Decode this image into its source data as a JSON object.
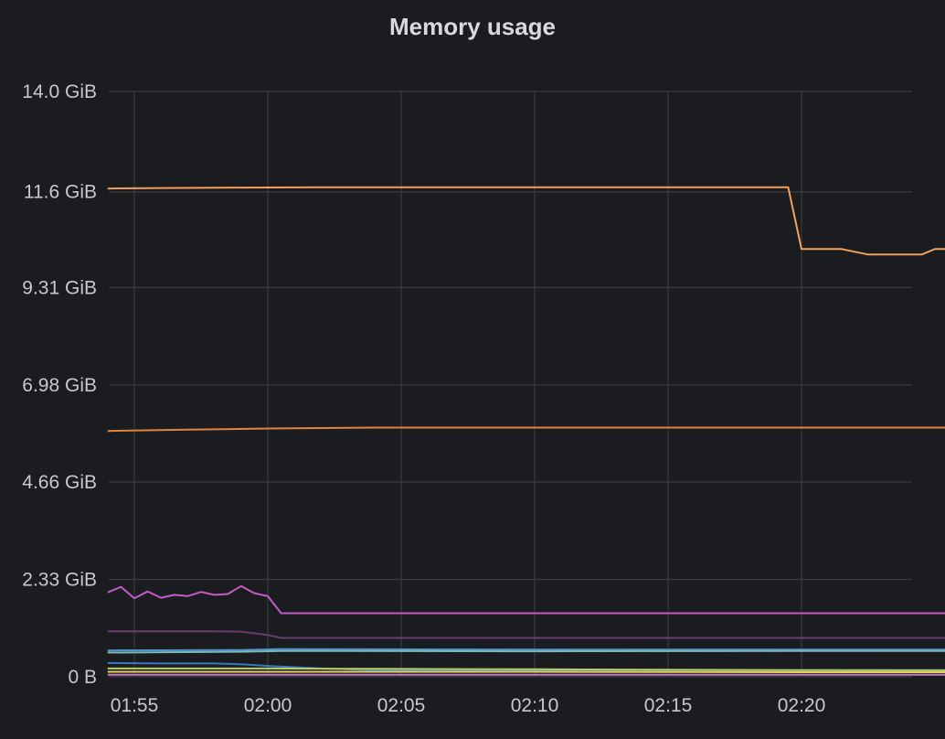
{
  "chart_data": {
    "type": "line",
    "title": "Memory usage",
    "xlabel": "",
    "ylabel": "",
    "x_ticks": [
      "01:55",
      "02:00",
      "02:05",
      "02:10",
      "02:15",
      "02:20"
    ],
    "y_ticks": [
      "0 B",
      "2.33 GiB",
      "4.66 GiB",
      "6.98 GiB",
      "9.31 GiB",
      "11.6 GiB",
      "14.0 GiB"
    ],
    "ylim": [
      0,
      14.0
    ],
    "xlim_minutes_after_0150": [
      4.0,
      34.0
    ],
    "grid": true,
    "legend": "none",
    "series": [
      {
        "color": "#f2a05b",
        "points": [
          [
            4,
            11.68
          ],
          [
            6,
            11.69
          ],
          [
            9,
            11.7
          ],
          [
            12,
            11.71
          ],
          [
            15,
            11.71
          ],
          [
            20,
            11.71
          ],
          [
            25,
            11.71
          ],
          [
            29.5,
            11.71
          ],
          [
            30,
            10.23
          ],
          [
            31,
            10.23
          ],
          [
            31.5,
            10.23
          ],
          [
            32.5,
            10.1
          ],
          [
            34,
            10.1
          ],
          [
            34.5,
            10.1
          ],
          [
            35,
            10.23
          ],
          [
            35.5,
            10.23
          ],
          [
            36,
            10.27
          ],
          [
            36.5,
            10.27
          ],
          [
            37,
            10.4
          ],
          [
            37.5,
            10.4
          ],
          [
            38,
            10.43
          ],
          [
            38.3,
            10.35
          ],
          [
            39,
            9.86
          ],
          [
            41,
            9.86
          ],
          [
            42,
            9.86
          ],
          [
            43,
            10.27
          ],
          [
            43.5,
            10.33
          ],
          [
            44.5,
            10.33
          ],
          [
            45,
            10.36
          ],
          [
            45.5,
            10.38
          ],
          [
            46,
            10.15
          ],
          [
            47,
            10.15
          ],
          [
            48,
            10.15
          ],
          [
            48.5,
            10.52
          ]
        ]
      },
      {
        "color": "#e2843b",
        "points": [
          [
            4,
            5.88
          ],
          [
            7,
            5.91
          ],
          [
            10,
            5.94
          ],
          [
            14,
            5.96
          ],
          [
            20,
            5.96
          ],
          [
            30,
            5.96
          ],
          [
            48.5,
            5.96
          ]
        ]
      },
      {
        "color": "#c45bc7",
        "points": [
          [
            4,
            2.02
          ],
          [
            4.5,
            2.15
          ],
          [
            5,
            1.88
          ],
          [
            5.5,
            2.04
          ],
          [
            6,
            1.89
          ],
          [
            6.5,
            1.96
          ],
          [
            7,
            1.93
          ],
          [
            7.5,
            2.03
          ],
          [
            8,
            1.96
          ],
          [
            8.5,
            1.98
          ],
          [
            9,
            2.17
          ],
          [
            9.5,
            2.0
          ],
          [
            10,
            1.93
          ],
          [
            10.5,
            1.52
          ],
          [
            12,
            1.52
          ],
          [
            20,
            1.52
          ],
          [
            30,
            1.52
          ],
          [
            48.5,
            1.52
          ]
        ]
      },
      {
        "color": "#6d3a6e",
        "points": [
          [
            4,
            1.09
          ],
          [
            6,
            1.09
          ],
          [
            8,
            1.09
          ],
          [
            9,
            1.08
          ],
          [
            10,
            1.0
          ],
          [
            10.5,
            0.93
          ],
          [
            20,
            0.93
          ],
          [
            48.5,
            0.93
          ]
        ]
      },
      {
        "color": "#4f95d6",
        "points": [
          [
            4,
            0.63
          ],
          [
            9,
            0.64
          ],
          [
            10.5,
            0.66
          ],
          [
            20,
            0.65
          ],
          [
            48.5,
            0.65
          ]
        ]
      },
      {
        "color": "#7db9b3",
        "points": [
          [
            4,
            0.58
          ],
          [
            9,
            0.6
          ],
          [
            10.5,
            0.62
          ],
          [
            20,
            0.61
          ],
          [
            30,
            0.62
          ],
          [
            48.5,
            0.62
          ]
        ]
      },
      {
        "color": "#3b78c2",
        "points": [
          [
            4,
            0.33
          ],
          [
            6,
            0.32
          ],
          [
            8,
            0.32
          ],
          [
            9,
            0.3
          ],
          [
            10,
            0.26
          ],
          [
            12,
            0.2
          ],
          [
            14,
            0.16
          ],
          [
            20,
            0.16
          ],
          [
            30,
            0.16
          ],
          [
            48.5,
            0.15
          ]
        ]
      },
      {
        "color": "#b6d06a",
        "points": [
          [
            4,
            0.2
          ],
          [
            10,
            0.2
          ],
          [
            14,
            0.19
          ],
          [
            20,
            0.18
          ],
          [
            30,
            0.16
          ],
          [
            40,
            0.15
          ],
          [
            48.5,
            0.19
          ]
        ]
      },
      {
        "color": "#e3cf5a",
        "points": [
          [
            4,
            0.12
          ],
          [
            20,
            0.12
          ],
          [
            30,
            0.11
          ],
          [
            40,
            0.11
          ],
          [
            48.5,
            0.12
          ]
        ]
      },
      {
        "color": "#c27ac2",
        "points": [
          [
            4,
            0.05
          ],
          [
            20,
            0.05
          ],
          [
            48.5,
            0.05
          ]
        ]
      }
    ]
  }
}
